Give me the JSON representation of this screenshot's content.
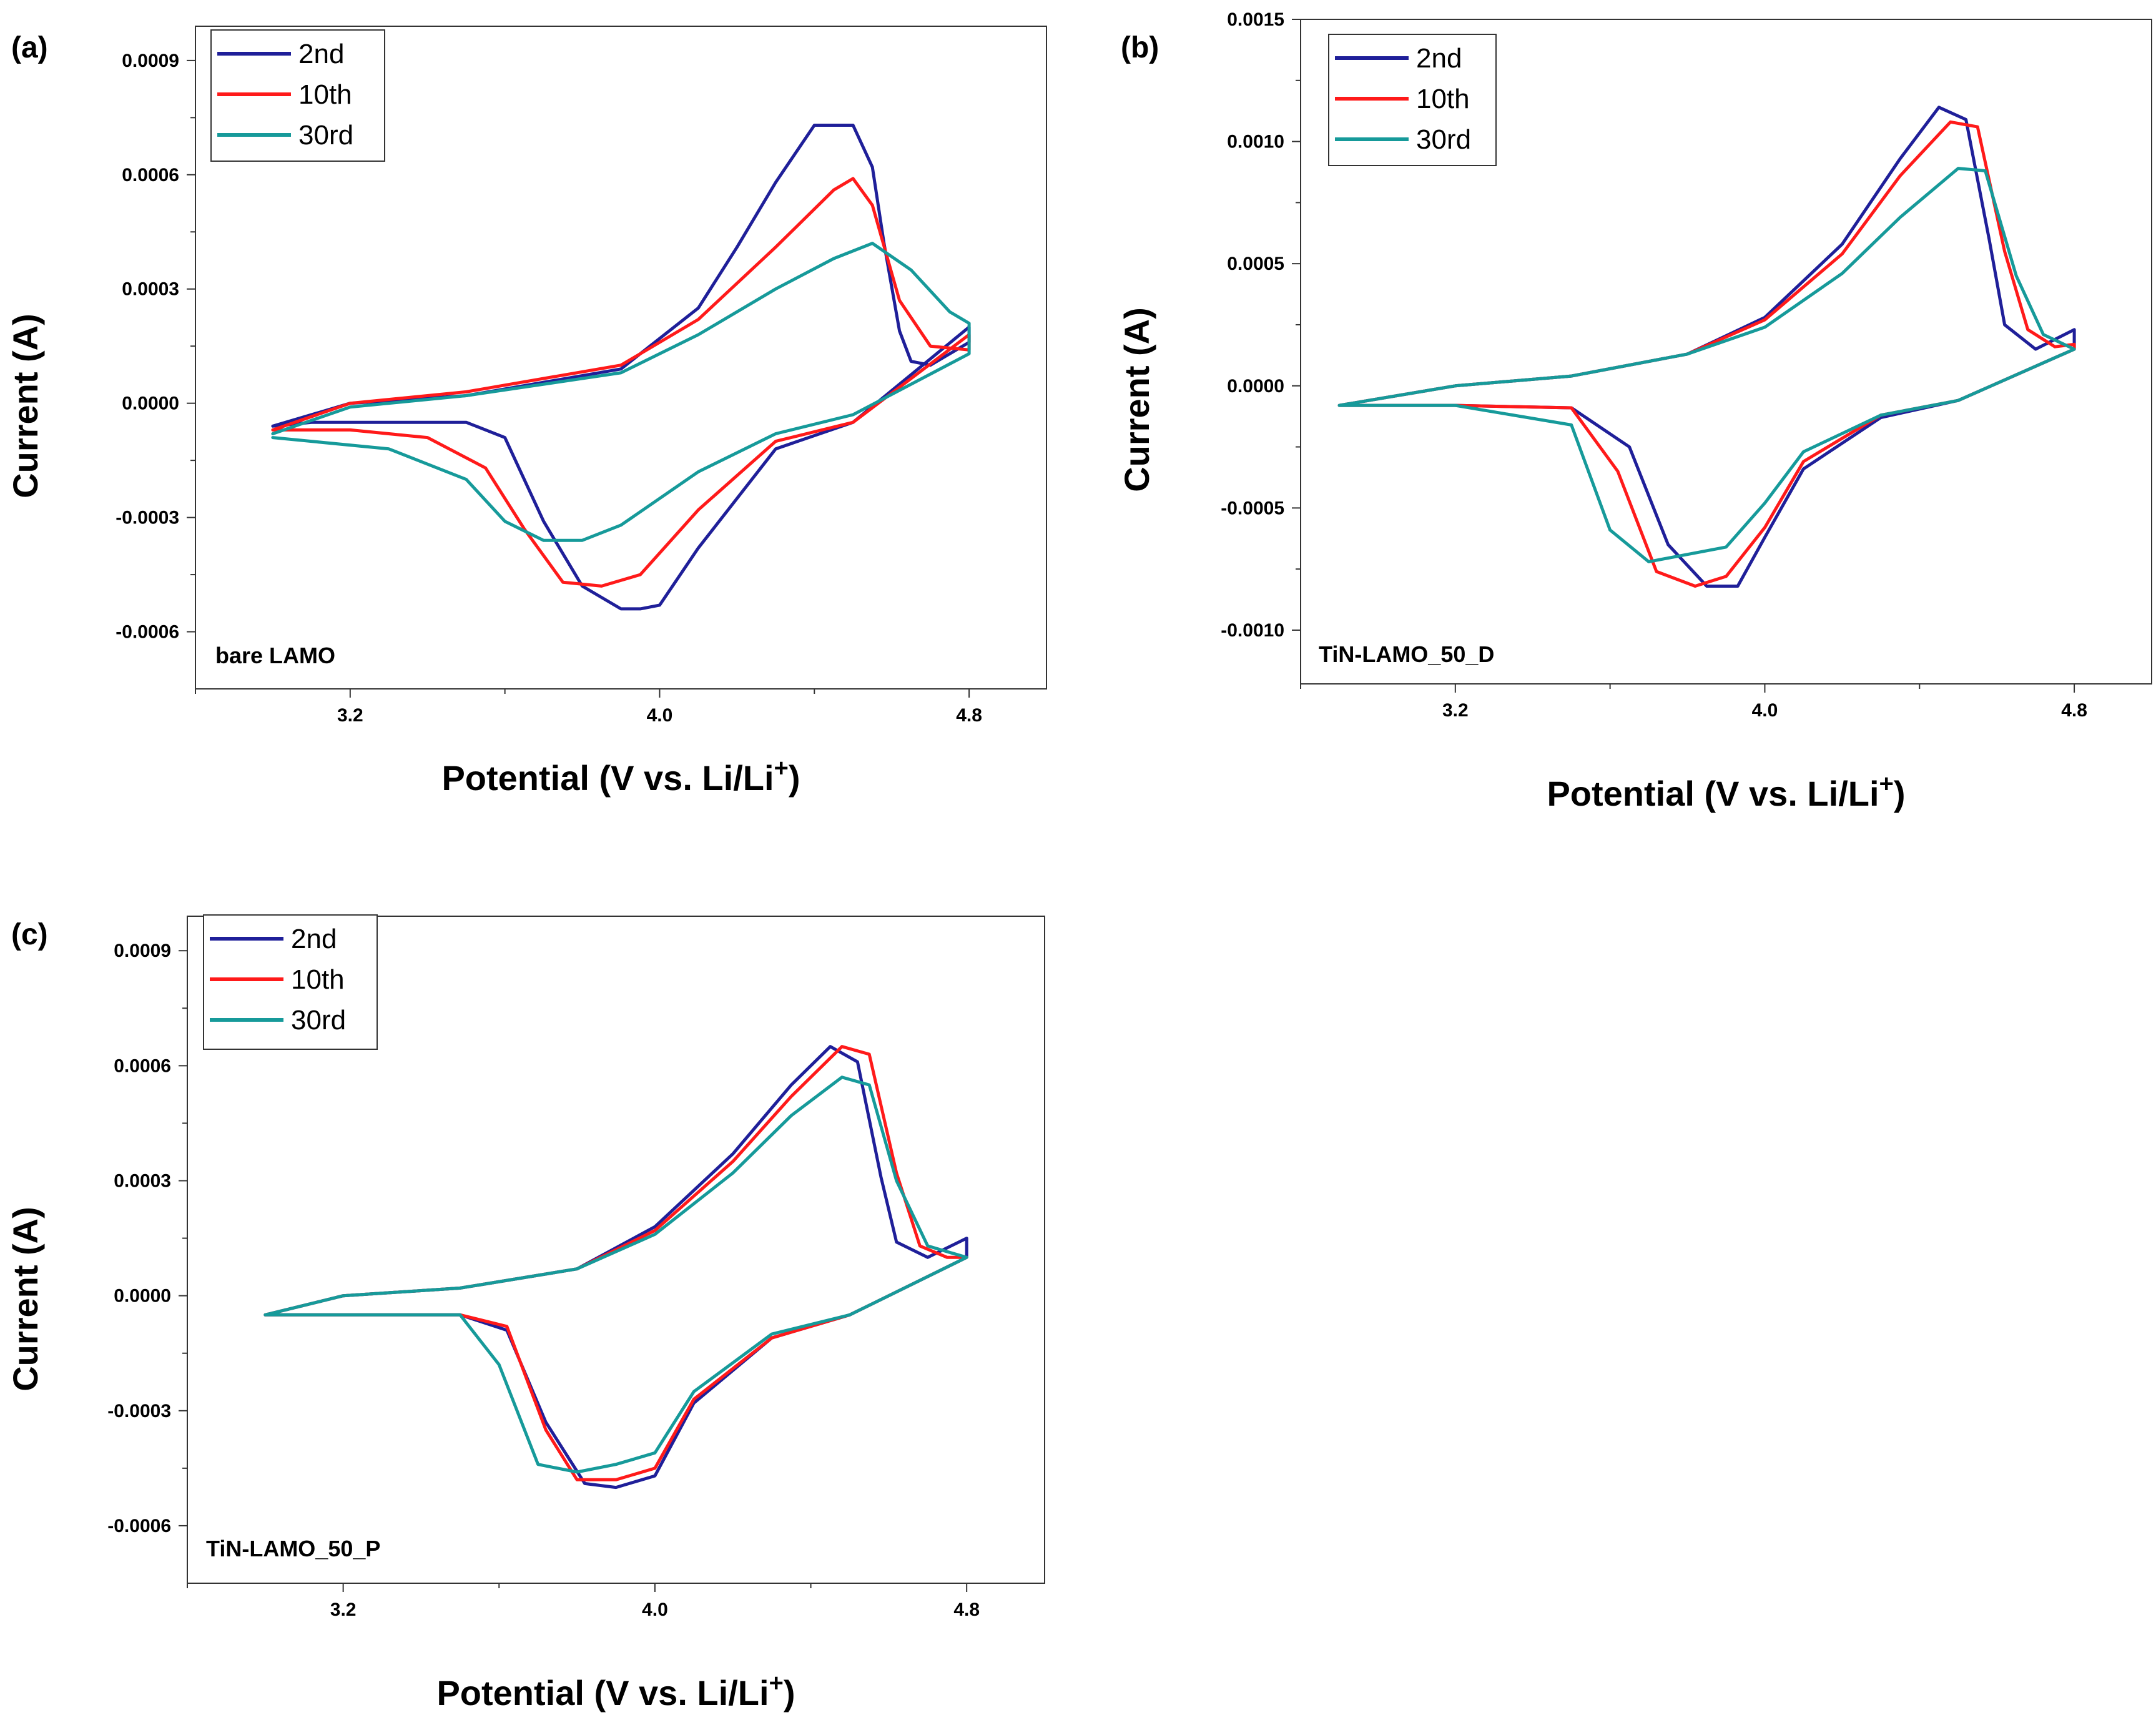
{
  "chart_data": [
    {
      "type": "line",
      "panel_label": "(a)",
      "sample_label": "bare LAMO",
      "xlabel": "Potential (V vs. Li/Li",
      "xlabel_sup": "+",
      "xlabel_end": ")",
      "ylabel": "Current (A)",
      "xlim": [
        2.8,
        5.0
      ],
      "ylim": [
        -0.00075,
        0.00099
      ],
      "xticks": [
        3.2,
        4.0,
        4.8
      ],
      "xtick_labels": [
        "3.2",
        "4.0",
        "4.8"
      ],
      "yticks": [
        -0.0006,
        -0.0003,
        0.0,
        0.0003,
        0.0006,
        0.0009
      ],
      "ytick_labels": [
        "-0.0006",
        "-0.0003",
        "0.0000",
        "0.0003",
        "0.0006",
        "0.0009"
      ],
      "legend_position": "top-left",
      "series": [
        {
          "name": "2nd",
          "color": "#1f1f99",
          "x": [
            3.0,
            3.2,
            3.5,
            3.9,
            4.1,
            4.2,
            4.3,
            4.4,
            4.5,
            4.55,
            4.58,
            4.62,
            4.65,
            4.7,
            4.8,
            4.8,
            4.5,
            4.3,
            4.1,
            4.0,
            3.95,
            3.9,
            3.8,
            3.7,
            3.6,
            3.5,
            3.3,
            3.1,
            3.0
          ],
          "y": [
            -6e-05,
            0.0,
            2e-05,
            9e-05,
            0.00025,
            0.00041,
            0.00058,
            0.00073,
            0.00073,
            0.00062,
            0.00042,
            0.00019,
            0.00011,
            0.0001,
            0.00016,
            0.0002,
            -5e-05,
            -0.00012,
            -0.00038,
            -0.00053,
            -0.00054,
            -0.00054,
            -0.00048,
            -0.00031,
            -9e-05,
            -5e-05,
            -5e-05,
            -5e-05,
            -6e-05
          ]
        },
        {
          "name": "10th",
          "color": "#ff1a1a",
          "x": [
            3.0,
            3.2,
            3.5,
            3.9,
            4.1,
            4.3,
            4.45,
            4.5,
            4.55,
            4.62,
            4.7,
            4.8,
            4.8,
            4.5,
            4.3,
            4.1,
            3.95,
            3.85,
            3.75,
            3.65,
            3.55,
            3.4,
            3.2,
            3.0
          ],
          "y": [
            -7e-05,
            0.0,
            3e-05,
            0.0001,
            0.00022,
            0.00041,
            0.00056,
            0.00059,
            0.00052,
            0.00027,
            0.00015,
            0.00014,
            0.00018,
            -5e-05,
            -0.0001,
            -0.00028,
            -0.00045,
            -0.00048,
            -0.00047,
            -0.00033,
            -0.00017,
            -9e-05,
            -7e-05,
            -7e-05
          ]
        },
        {
          "name": "30rd",
          "color": "#169a9a",
          "x": [
            3.0,
            3.2,
            3.5,
            3.9,
            4.1,
            4.3,
            4.45,
            4.55,
            4.65,
            4.75,
            4.8,
            4.8,
            4.5,
            4.3,
            4.1,
            3.9,
            3.8,
            3.7,
            3.6,
            3.5,
            3.3,
            3.0
          ],
          "y": [
            -8e-05,
            -1e-05,
            2e-05,
            8e-05,
            0.00018,
            0.0003,
            0.00038,
            0.00042,
            0.00035,
            0.00024,
            0.00021,
            0.00013,
            -3e-05,
            -8e-05,
            -0.00018,
            -0.00032,
            -0.00036,
            -0.00036,
            -0.00031,
            -0.0002,
            -0.00012,
            -9e-05
          ]
        }
      ]
    },
    {
      "type": "line",
      "panel_label": "(b)",
      "sample_label": "TiN-LAMO_50_D",
      "xlabel": "Potential (V vs. Li/Li",
      "xlabel_sup": "+",
      "xlabel_end": ")",
      "ylabel": "Current (A)",
      "xlim": [
        2.8,
        5.0
      ],
      "ylim": [
        -0.00122,
        0.0015
      ],
      "xticks": [
        3.2,
        4.0,
        4.8
      ],
      "xtick_labels": [
        "3.2",
        "4.0",
        "4.8"
      ],
      "yticks": [
        -0.001,
        -0.0005,
        0.0,
        0.0005,
        0.001,
        0.0015
      ],
      "ytick_labels": [
        "-0.0010",
        "-0.0005",
        "0.0000",
        "0.0005",
        "0.0010",
        "0.0015"
      ],
      "legend_position": "top-left",
      "series": [
        {
          "name": "2nd",
          "color": "#1f1f99",
          "x": [
            2.9,
            3.2,
            3.5,
            3.8,
            4.0,
            4.2,
            4.35,
            4.45,
            4.52,
            4.58,
            4.62,
            4.7,
            4.8,
            4.8,
            4.5,
            4.3,
            4.1,
            4.0,
            3.93,
            3.85,
            3.75,
            3.65,
            3.5,
            3.2,
            2.9
          ],
          "y": [
            -8e-05,
            0.0,
            4e-05,
            0.00013,
            0.00028,
            0.00058,
            0.00093,
            0.00114,
            0.00109,
            0.0006,
            0.00025,
            0.00015,
            0.00023,
            0.00015,
            -6e-05,
            -0.00013,
            -0.00034,
            -0.00062,
            -0.00082,
            -0.00082,
            -0.00065,
            -0.00025,
            -9e-05,
            -8e-05,
            -8e-05
          ]
        },
        {
          "name": "10th",
          "color": "#ff1a1a",
          "x": [
            2.9,
            3.2,
            3.5,
            3.8,
            4.0,
            4.2,
            4.35,
            4.48,
            4.55,
            4.62,
            4.68,
            4.75,
            4.8,
            4.8,
            4.5,
            4.3,
            4.1,
            4.0,
            3.9,
            3.82,
            3.72,
            3.62,
            3.5,
            3.2,
            2.9
          ],
          "y": [
            -8e-05,
            0.0,
            4e-05,
            0.00013,
            0.00027,
            0.00054,
            0.00086,
            0.00108,
            0.00106,
            0.00055,
            0.00023,
            0.00016,
            0.00017,
            0.00015,
            -6e-05,
            -0.00012,
            -0.00031,
            -0.00058,
            -0.00078,
            -0.00082,
            -0.00076,
            -0.00035,
            -9e-05,
            -8e-05,
            -8e-05
          ]
        },
        {
          "name": "30rd",
          "color": "#169a9a",
          "x": [
            2.9,
            3.2,
            3.5,
            3.8,
            4.0,
            4.2,
            4.35,
            4.5,
            4.57,
            4.65,
            4.72,
            4.8,
            4.8,
            4.5,
            4.3,
            4.1,
            4.0,
            3.9,
            3.8,
            3.7,
            3.6,
            3.5,
            3.2,
            2.9
          ],
          "y": [
            -8e-05,
            0.0,
            4e-05,
            0.00013,
            0.00024,
            0.00046,
            0.00069,
            0.00089,
            0.00088,
            0.00045,
            0.00021,
            0.00015,
            0.00015,
            -6e-05,
            -0.00012,
            -0.00027,
            -0.00048,
            -0.00066,
            -0.00069,
            -0.00072,
            -0.00059,
            -0.00016,
            -8e-05,
            -8e-05
          ]
        }
      ]
    },
    {
      "type": "line",
      "panel_label": "(c)",
      "sample_label": "TiN-LAMO_50_P",
      "xlabel": "Potential (V vs. Li/Li",
      "xlabel_sup": "+",
      "xlabel_end": ")",
      "ylabel": "Current (A)",
      "xlim": [
        2.8,
        5.0
      ],
      "ylim": [
        -0.00075,
        0.00099
      ],
      "xticks": [
        3.2,
        4.0,
        4.8
      ],
      "xtick_labels": [
        "3.2",
        "4.0",
        "4.8"
      ],
      "yticks": [
        -0.0006,
        -0.0003,
        0.0,
        0.0003,
        0.0006,
        0.0009
      ],
      "ytick_labels": [
        "-0.0006",
        "-0.0003",
        "0.0000",
        "0.0003",
        "0.0006",
        "0.0009"
      ],
      "legend_position": "top-left",
      "series": [
        {
          "name": "2nd",
          "color": "#1f1f99",
          "x": [
            3.0,
            3.2,
            3.5,
            3.8,
            4.0,
            4.2,
            4.35,
            4.45,
            4.52,
            4.58,
            4.62,
            4.7,
            4.8,
            4.8,
            4.5,
            4.3,
            4.1,
            4.0,
            3.9,
            3.82,
            3.72,
            3.62,
            3.5,
            3.2,
            3.0
          ],
          "y": [
            -5e-05,
            0.0,
            2e-05,
            7e-05,
            0.00018,
            0.00037,
            0.00055,
            0.00065,
            0.00061,
            0.00031,
            0.00014,
            0.0001,
            0.00015,
            0.0001,
            -5e-05,
            -0.00011,
            -0.00028,
            -0.00047,
            -0.0005,
            -0.00049,
            -0.00033,
            -9e-05,
            -5e-05,
            -5e-05,
            -5e-05
          ]
        },
        {
          "name": "10th",
          "color": "#ff1a1a",
          "x": [
            3.0,
            3.2,
            3.5,
            3.8,
            4.0,
            4.2,
            4.35,
            4.48,
            4.55,
            4.62,
            4.68,
            4.75,
            4.8,
            4.8,
            4.5,
            4.3,
            4.1,
            4.0,
            3.9,
            3.8,
            3.72,
            3.62,
            3.5,
            3.2,
            3.0
          ],
          "y": [
            -5e-05,
            0.0,
            2e-05,
            7e-05,
            0.00017,
            0.00035,
            0.00052,
            0.00065,
            0.00063,
            0.00032,
            0.00013,
            0.0001,
            0.0001,
            0.0001,
            -5e-05,
            -0.00011,
            -0.00027,
            -0.00045,
            -0.00048,
            -0.00048,
            -0.00035,
            -8e-05,
            -5e-05,
            -5e-05,
            -5e-05
          ]
        },
        {
          "name": "30rd",
          "color": "#169a9a",
          "x": [
            3.0,
            3.2,
            3.5,
            3.8,
            4.0,
            4.2,
            4.35,
            4.48,
            4.55,
            4.62,
            4.7,
            4.8,
            4.8,
            4.5,
            4.3,
            4.1,
            4.0,
            3.9,
            3.8,
            3.7,
            3.6,
            3.5,
            3.2,
            3.0
          ],
          "y": [
            -5e-05,
            0.0,
            2e-05,
            7e-05,
            0.00016,
            0.00032,
            0.00047,
            0.00057,
            0.00055,
            0.0003,
            0.00013,
            0.0001,
            0.0001,
            -5e-05,
            -0.0001,
            -0.00025,
            -0.00041,
            -0.00044,
            -0.00046,
            -0.00044,
            -0.00018,
            -5e-05,
            -5e-05,
            -5e-05
          ]
        }
      ]
    }
  ]
}
